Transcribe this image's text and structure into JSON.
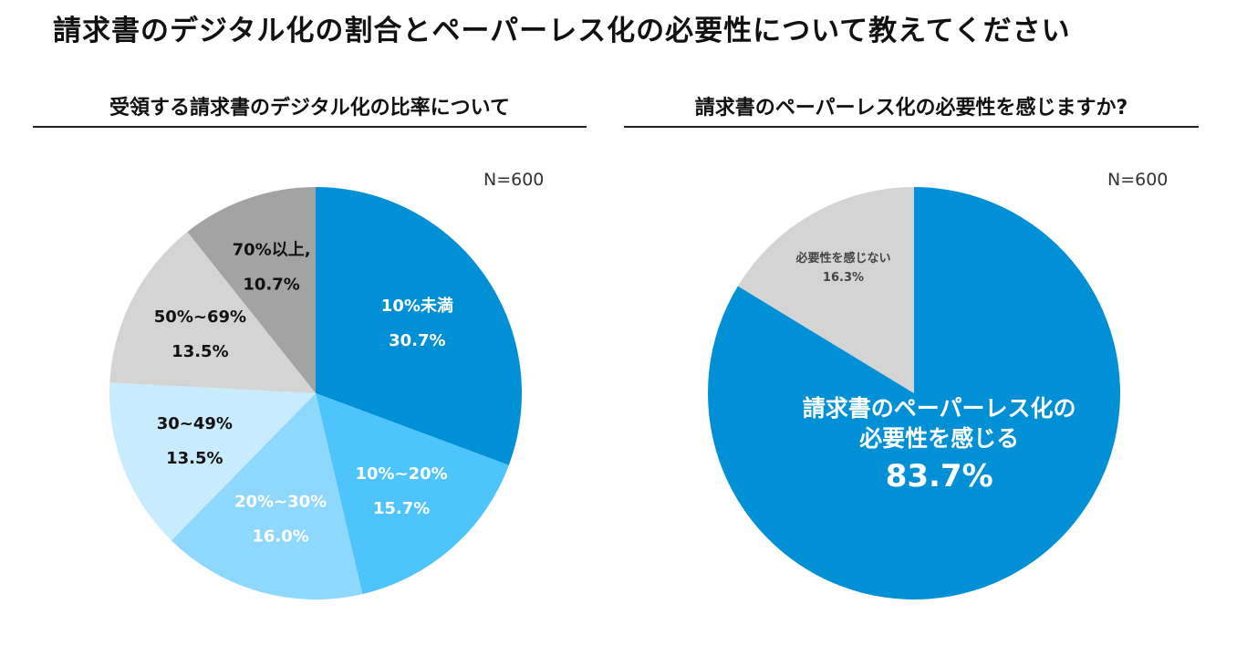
{
  "page_title": "請求書のデジタル化の割合とペーパーレス化の必要性について教えてください",
  "chart_data": [
    {
      "type": "pie",
      "title": "受領する請求書のデジタル化の比率について",
      "sample_size": "N=600",
      "slices": [
        {
          "name": "10%未満",
          "value": 30.7,
          "value_label": "30.7%",
          "color": "#0190d6",
          "text_color": "#ffffff"
        },
        {
          "name": "10%~20%",
          "value": 15.7,
          "value_label": "15.7%",
          "color": "#4ec4fd",
          "text_color": "#ffffff"
        },
        {
          "name": "20%~30%",
          "value": 16.0,
          "value_label": "16.0%",
          "color": "#8ed7fd",
          "text_color": "#ffffff"
        },
        {
          "name": "30~49%",
          "value": 13.5,
          "value_label": "13.5%",
          "color": "#c8ecfe",
          "text_color": "#111111"
        },
        {
          "name": "50%~69%",
          "value": 13.5,
          "value_label": "13.5%",
          "color": "#d4d4d4",
          "text_color": "#111111"
        },
        {
          "name": "70%以上,",
          "value": 10.7,
          "value_label": "10.7%",
          "color": "#a3a3a3",
          "text_color": "#111111"
        }
      ]
    },
    {
      "type": "pie",
      "title": "請求書のペーパーレス化の必要性を感じますか?",
      "sample_size": "N=600",
      "slices": [
        {
          "name_lines": [
            "請求書のペーパーレス化の",
            "必要性を感じる"
          ],
          "value": 83.7,
          "value_label": "83.7%",
          "color": "#0190d6",
          "text_color": "#ffffff"
        },
        {
          "name_lines": [
            "必要性を感じない"
          ],
          "value": 16.3,
          "value_label": "16.3%",
          "color": "#d4d4d4",
          "text_color": "#444444"
        }
      ]
    }
  ]
}
